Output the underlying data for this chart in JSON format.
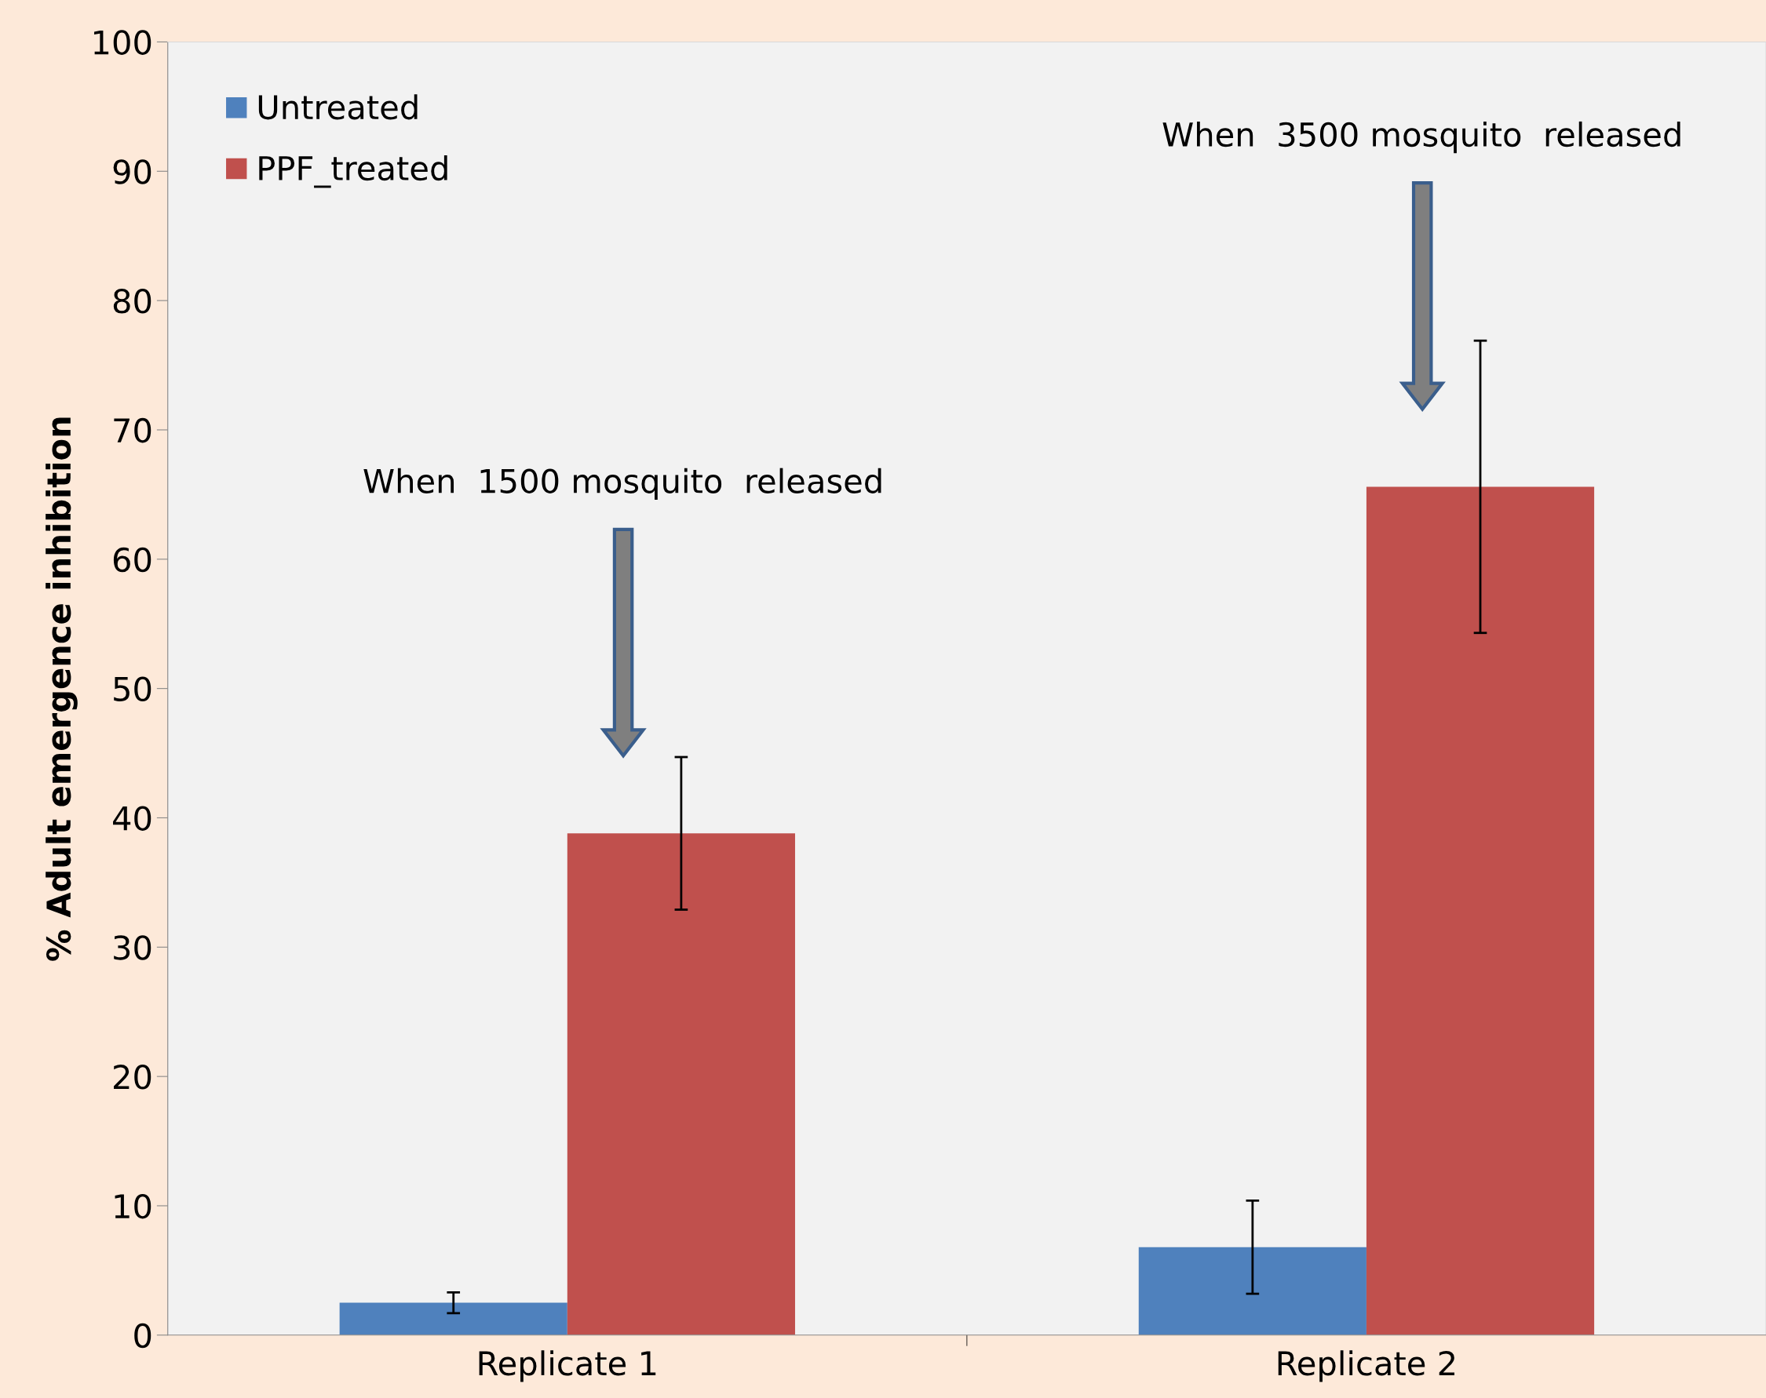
{
  "chart_data": {
    "type": "bar",
    "ylabel": "% Adult emergence inhibition",
    "categories": [
      "Replicate 1",
      "Replicate 2"
    ],
    "series": [
      {
        "name": "Untreated",
        "color": "#4f81bd",
        "values": [
          2.5,
          6.8
        ],
        "errors": [
          0.8,
          3.6
        ]
      },
      {
        "name": "PPF_treated",
        "color": "#c0504d",
        "values": [
          38.8,
          65.6
        ],
        "errors": [
          5.9,
          11.3
        ]
      }
    ],
    "ylim": [
      0,
      100
    ],
    "yticks": [
      0,
      10,
      20,
      30,
      40,
      50,
      60,
      70,
      80,
      90,
      100
    ],
    "grid": false,
    "legend": "top left",
    "annotations": [
      "When  1500 mosquito  released",
      "When  3500 mosquito  released"
    ]
  }
}
